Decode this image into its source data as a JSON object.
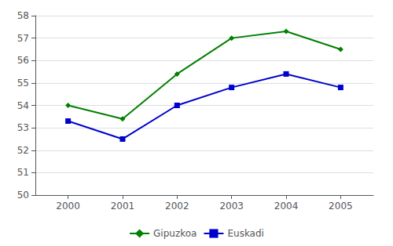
{
  "chart_data": {
    "type": "line",
    "x": [
      2000,
      2001,
      2002,
      2003,
      2004,
      2005
    ],
    "series": [
      {
        "name": "Gipuzkoa",
        "color": "#008000",
        "marker": "diamond",
        "values": [
          54.0,
          53.4,
          55.4,
          57.0,
          57.3,
          56.5
        ]
      },
      {
        "name": "Euskadi",
        "color": "#0000CC",
        "marker": "square",
        "values": [
          53.3,
          52.5,
          54.0,
          54.8,
          55.4,
          54.8
        ]
      }
    ],
    "xlim": [
      1999.4,
      2005.6
    ],
    "xticks": [
      2000,
      2001,
      2002,
      2003,
      2004,
      2005
    ],
    "ylim": [
      50,
      58
    ],
    "yticks": [
      50,
      51,
      52,
      53,
      54,
      55,
      56,
      57,
      58
    ],
    "grid": true,
    "legend": "bottom"
  }
}
